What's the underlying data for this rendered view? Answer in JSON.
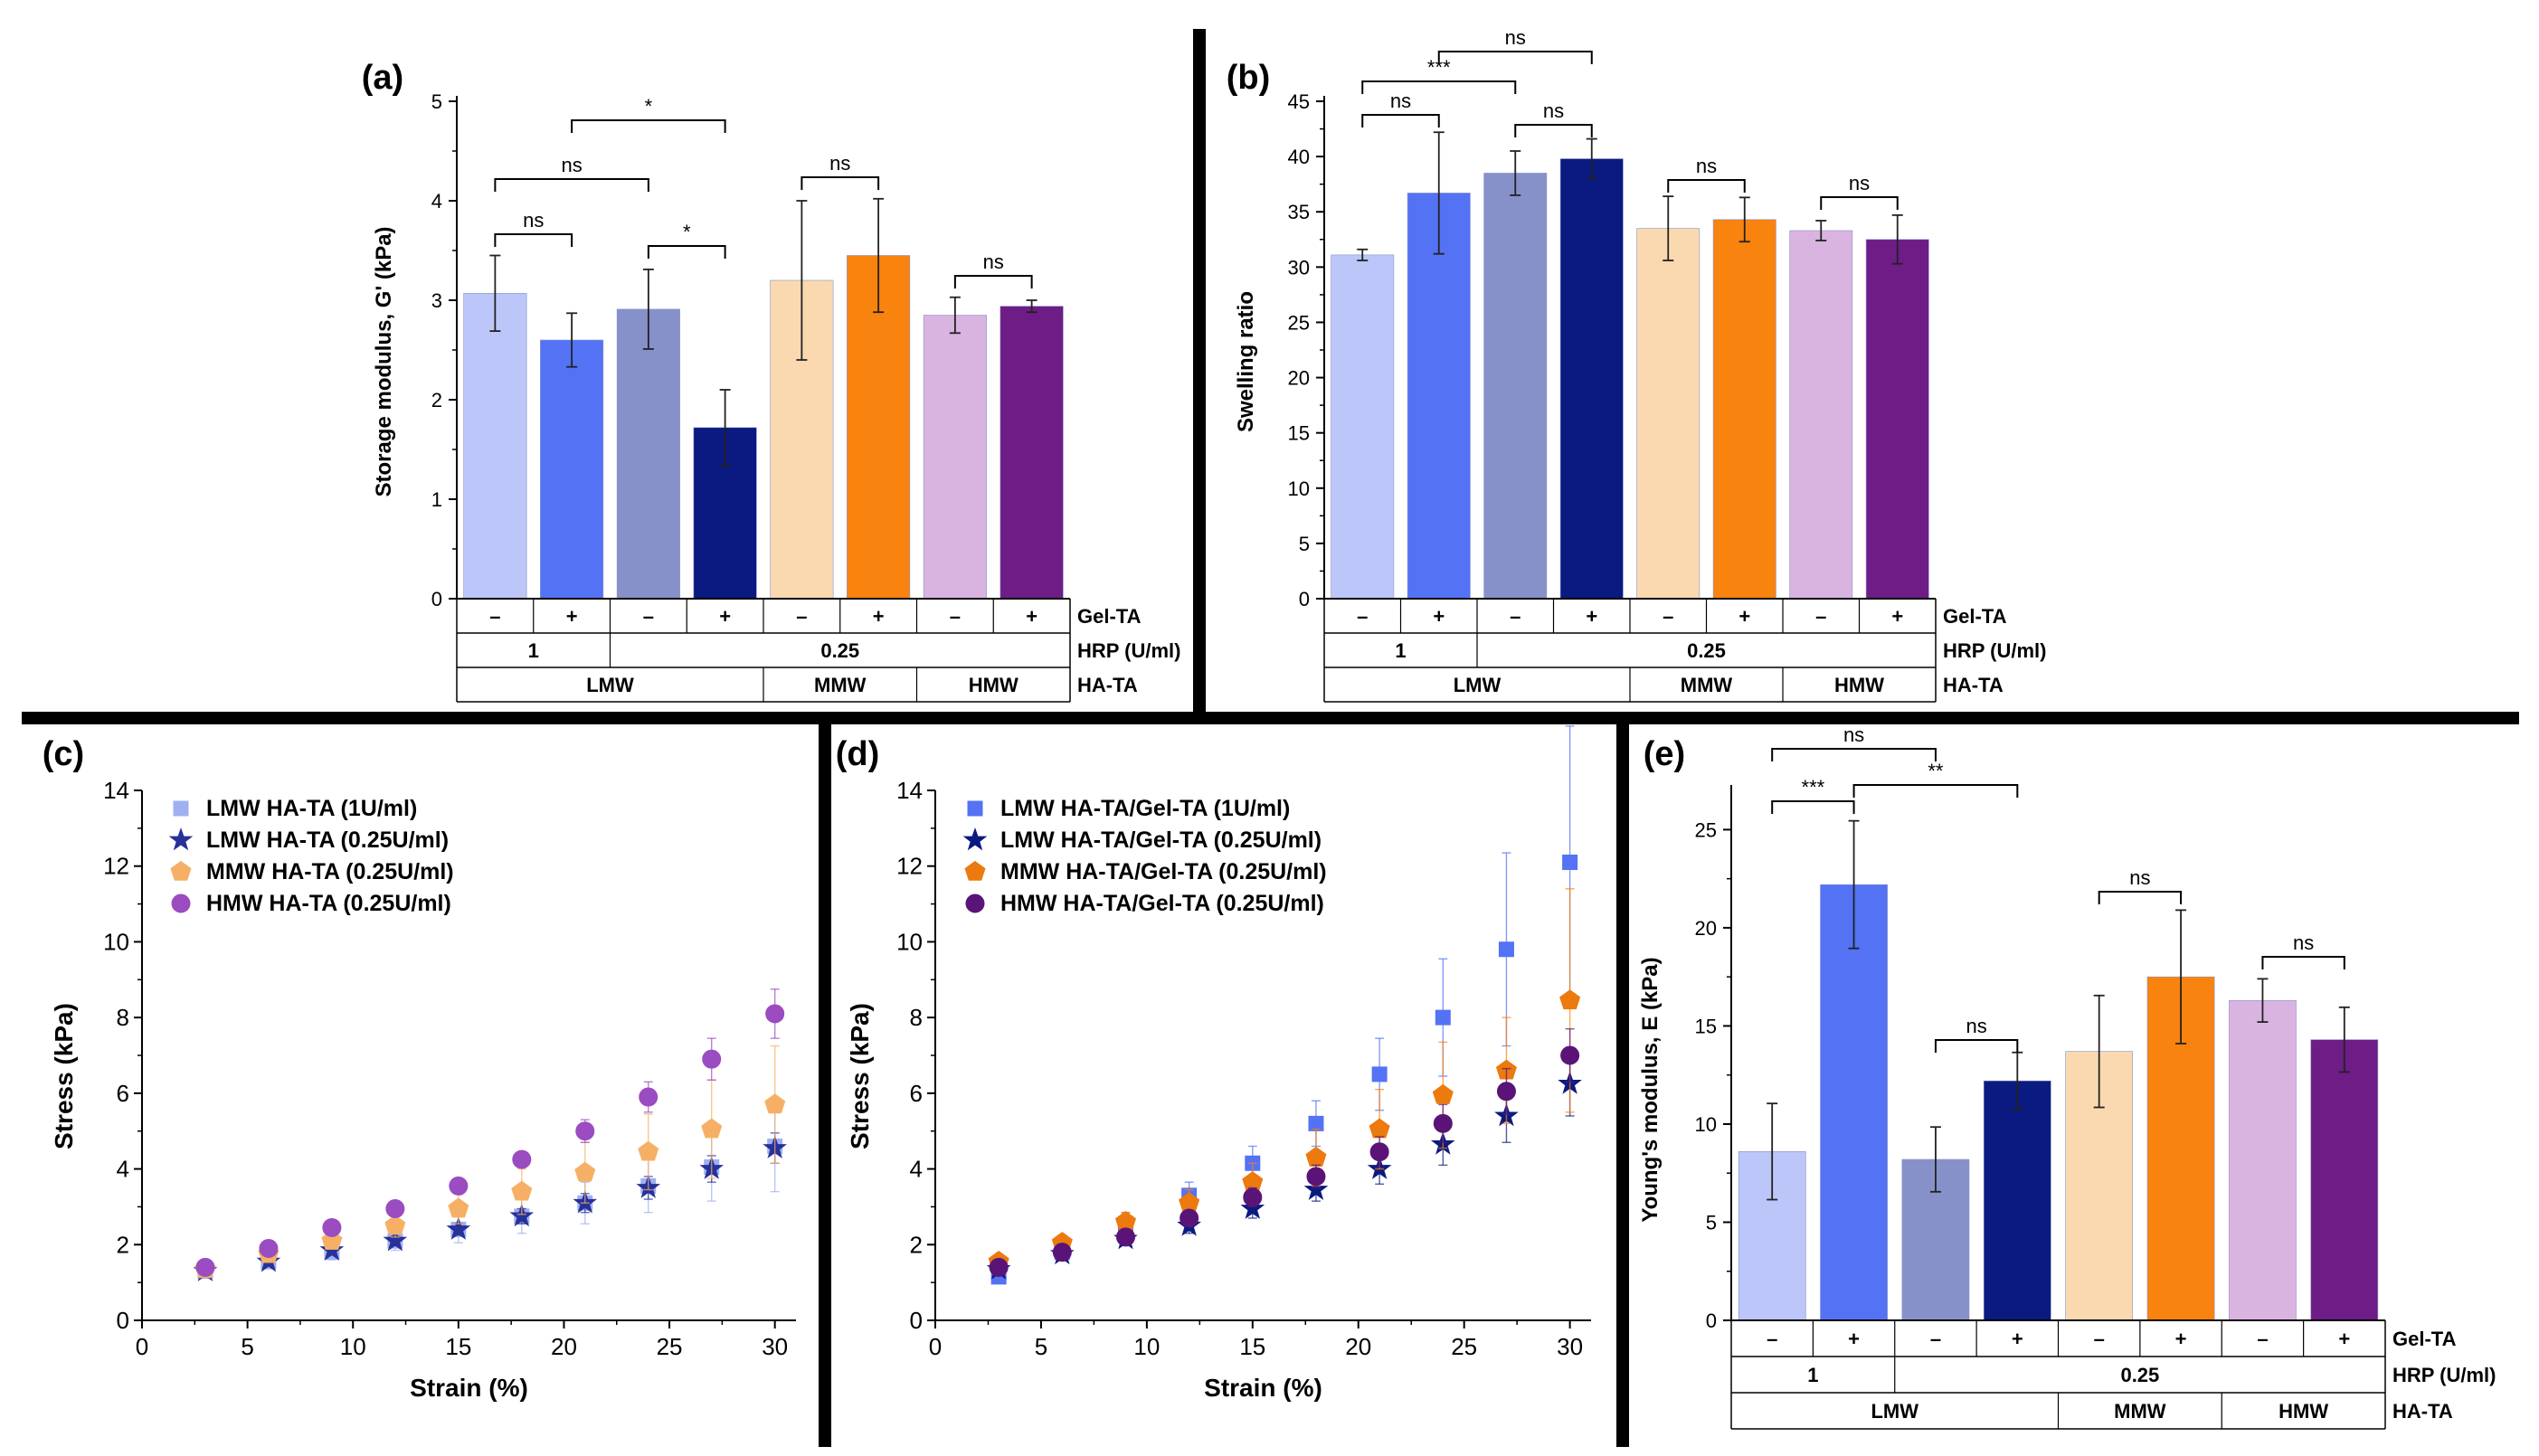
{
  "figure": {
    "colors": {
      "lmw1_minus": "#BCC6F8",
      "lmw1_plus": "#5472F4",
      "lmw025_minus": "#8791C9",
      "lmw025_plus": "#0A1A80",
      "mmw_minus": "#FAD9B0",
      "mmw_plus": "#F9830F",
      "hmw_minus": "#DAB4E0",
      "hmw_plus": "#6E1C86",
      "line_lmw1": "#9FB0F2",
      "line_lmw025": "#27319A",
      "line_mmw": "#F6B066",
      "line_hmw": "#9A4CC0",
      "orange_dark": "#EC7A0E",
      "purple_dark": "#5A1478"
    }
  },
  "chart_data": [
    {
      "panel": "(a)",
      "type": "bar",
      "ylabel": "Storage modulus, G' (kPa)",
      "ylim": [
        0,
        5
      ],
      "yticks": [
        "0",
        "1",
        "2",
        "3",
        "4",
        "5"
      ],
      "gel_ta": [
        "–",
        "+",
        "–",
        "+",
        "–",
        "+",
        "–",
        "+"
      ],
      "hrp_groups": [
        "1",
        "0.25"
      ],
      "hata_groups": [
        "LMW",
        "MMW",
        "HMW"
      ],
      "row_labels": [
        "Gel-TA",
        "HRP (U/ml)",
        "HA-TA"
      ],
      "values": [
        3.07,
        2.6,
        2.91,
        1.72,
        3.2,
        3.45,
        2.85,
        2.94
      ],
      "errors": [
        0.38,
        0.27,
        0.4,
        0.38,
        0.8,
        0.57,
        0.18,
        0.06
      ],
      "significance": [
        "ns",
        "ns",
        "*",
        "*",
        "ns",
        "ns"
      ]
    },
    {
      "panel": "(b)",
      "type": "bar",
      "ylabel": "Swelling ratio",
      "ylim": [
        0,
        45
      ],
      "yticks": [
        "0",
        "5",
        "10",
        "15",
        "20",
        "25",
        "30",
        "35",
        "40",
        "45"
      ],
      "gel_ta": [
        "–",
        "+",
        "–",
        "+",
        "–",
        "+",
        "–",
        "+"
      ],
      "hrp_groups": [
        "1",
        "0.25"
      ],
      "hata_groups": [
        "LMW",
        "MMW",
        "HMW"
      ],
      "row_labels": [
        "Gel-TA",
        "HRP (U/ml)",
        "HA-TA"
      ],
      "values": [
        31.1,
        36.7,
        38.5,
        39.8,
        33.5,
        34.3,
        33.3,
        32.5
      ],
      "errors": [
        0.5,
        5.5,
        2.0,
        1.8,
        2.9,
        2.0,
        0.9,
        2.2
      ],
      "significance": [
        "ns",
        "***",
        "ns",
        "ns",
        "ns",
        "ns"
      ]
    },
    {
      "panel": "(c)",
      "type": "scatter",
      "xlabel": "Strain (%)",
      "ylabel": "Stress (kPa)",
      "xlim": [
        0,
        31
      ],
      "ylim": [
        0,
        14
      ],
      "xticks": [
        "0",
        "5",
        "10",
        "15",
        "20",
        "25",
        "30"
      ],
      "yticks": [
        "0",
        "2",
        "4",
        "6",
        "8",
        "10",
        "12",
        "14"
      ],
      "x": [
        3,
        6,
        9,
        12,
        15,
        18,
        21,
        24,
        27,
        30
      ],
      "series": [
        {
          "name": "LMW HA-TA (1U/ml)",
          "marker": "square",
          "values": [
            1.3,
            1.55,
            1.8,
            2.1,
            2.4,
            2.75,
            3.1,
            3.55,
            4.05,
            4.6
          ],
          "errors": [
            0.1,
            0.15,
            0.2,
            0.25,
            0.35,
            0.45,
            0.55,
            0.7,
            0.9,
            1.2
          ]
        },
        {
          "name": "LMW HA-TA (0.25U/ml)",
          "marker": "star",
          "values": [
            1.3,
            1.55,
            1.85,
            2.1,
            2.4,
            2.75,
            3.1,
            3.5,
            4.0,
            4.55
          ],
          "errors": [
            0.05,
            0.08,
            0.1,
            0.12,
            0.15,
            0.2,
            0.25,
            0.3,
            0.35,
            0.4
          ]
        },
        {
          "name": "MMW HA-TA (0.25U/ml)",
          "marker": "pentagon",
          "values": [
            1.35,
            1.75,
            2.1,
            2.5,
            2.95,
            3.4,
            3.9,
            4.45,
            5.05,
            5.7
          ],
          "errors": [
            0.1,
            0.15,
            0.2,
            0.3,
            0.4,
            0.6,
            0.8,
            1.0,
            1.3,
            1.55
          ]
        },
        {
          "name": "HMW HA-TA (0.25U/ml)",
          "marker": "circle",
          "values": [
            1.4,
            1.9,
            2.45,
            2.95,
            3.55,
            4.25,
            5.0,
            5.9,
            6.9,
            8.1
          ],
          "errors": [
            0.05,
            0.08,
            0.1,
            0.12,
            0.15,
            0.2,
            0.3,
            0.4,
            0.55,
            0.65
          ]
        }
      ]
    },
    {
      "panel": "(d)",
      "type": "scatter",
      "xlabel": "Strain (%)",
      "ylabel": "Stress (kPa)",
      "xlim": [
        0,
        31
      ],
      "ylim": [
        0,
        14
      ],
      "xticks": [
        "0",
        "5",
        "10",
        "15",
        "20",
        "25",
        "30"
      ],
      "yticks": [
        "0",
        "2",
        "4",
        "6",
        "8",
        "10",
        "12",
        "14"
      ],
      "x": [
        3,
        6,
        9,
        12,
        15,
        18,
        21,
        24,
        27,
        30
      ],
      "series": [
        {
          "name": "LMW HA-TA/Gel-TA (1U/ml)",
          "marker": "square",
          "values": [
            1.15,
            1.8,
            2.55,
            3.3,
            4.15,
            5.2,
            6.5,
            8.0,
            9.8,
            12.1
          ],
          "errors": [
            0.15,
            0.2,
            0.3,
            0.35,
            0.45,
            0.6,
            0.95,
            1.55,
            2.55,
            3.6
          ]
        },
        {
          "name": "LMW HA-TA/Gel-TA (0.25U/ml)",
          "marker": "star",
          "values": [
            1.35,
            1.75,
            2.15,
            2.5,
            2.95,
            3.45,
            4.0,
            4.65,
            5.4,
            6.25
          ],
          "errors": [
            0.1,
            0.12,
            0.15,
            0.2,
            0.25,
            0.3,
            0.4,
            0.55,
            0.7,
            0.85
          ]
        },
        {
          "name": "MMW HA-TA/Gel-TA (0.25U/ml)",
          "marker": "pentagon",
          "values": [
            1.55,
            2.05,
            2.6,
            3.1,
            3.65,
            4.3,
            5.05,
            5.95,
            6.6,
            8.45
          ],
          "errors": [
            0.15,
            0.2,
            0.25,
            0.35,
            0.5,
            0.75,
            1.05,
            1.4,
            1.4,
            2.95
          ]
        },
        {
          "name": "HMW HA-TA/Gel-TA (0.25U/ml)",
          "marker": "circle",
          "values": [
            1.4,
            1.8,
            2.2,
            2.7,
            3.25,
            3.8,
            4.45,
            5.2,
            6.05,
            7.0
          ],
          "errors": [
            0.08,
            0.1,
            0.15,
            0.2,
            0.25,
            0.3,
            0.4,
            0.5,
            0.6,
            0.7
          ]
        }
      ]
    },
    {
      "panel": "(e)",
      "type": "bar",
      "ylabel": "Young's modulus, E (kPa)",
      "ylim": [
        0,
        27
      ],
      "yticks": [
        "0",
        "5",
        "10",
        "15",
        "20",
        "25"
      ],
      "gel_ta": [
        "–",
        "+",
        "–",
        "+",
        "–",
        "+",
        "–",
        "+"
      ],
      "hrp_groups": [
        "1",
        "0.25"
      ],
      "hata_groups": [
        "LMW",
        "MMW",
        "HMW"
      ],
      "row_labels": [
        "Gel-TA",
        "HRP (U/ml)",
        "HA-TA"
      ],
      "values": [
        8.6,
        22.2,
        8.2,
        12.2,
        13.7,
        17.5,
        16.3,
        14.3
      ],
      "errors": [
        2.45,
        3.25,
        1.65,
        1.45,
        2.85,
        3.4,
        1.1,
        1.65
      ],
      "significance": [
        "ns",
        "***",
        "**",
        "ns",
        "ns",
        "ns"
      ]
    }
  ]
}
